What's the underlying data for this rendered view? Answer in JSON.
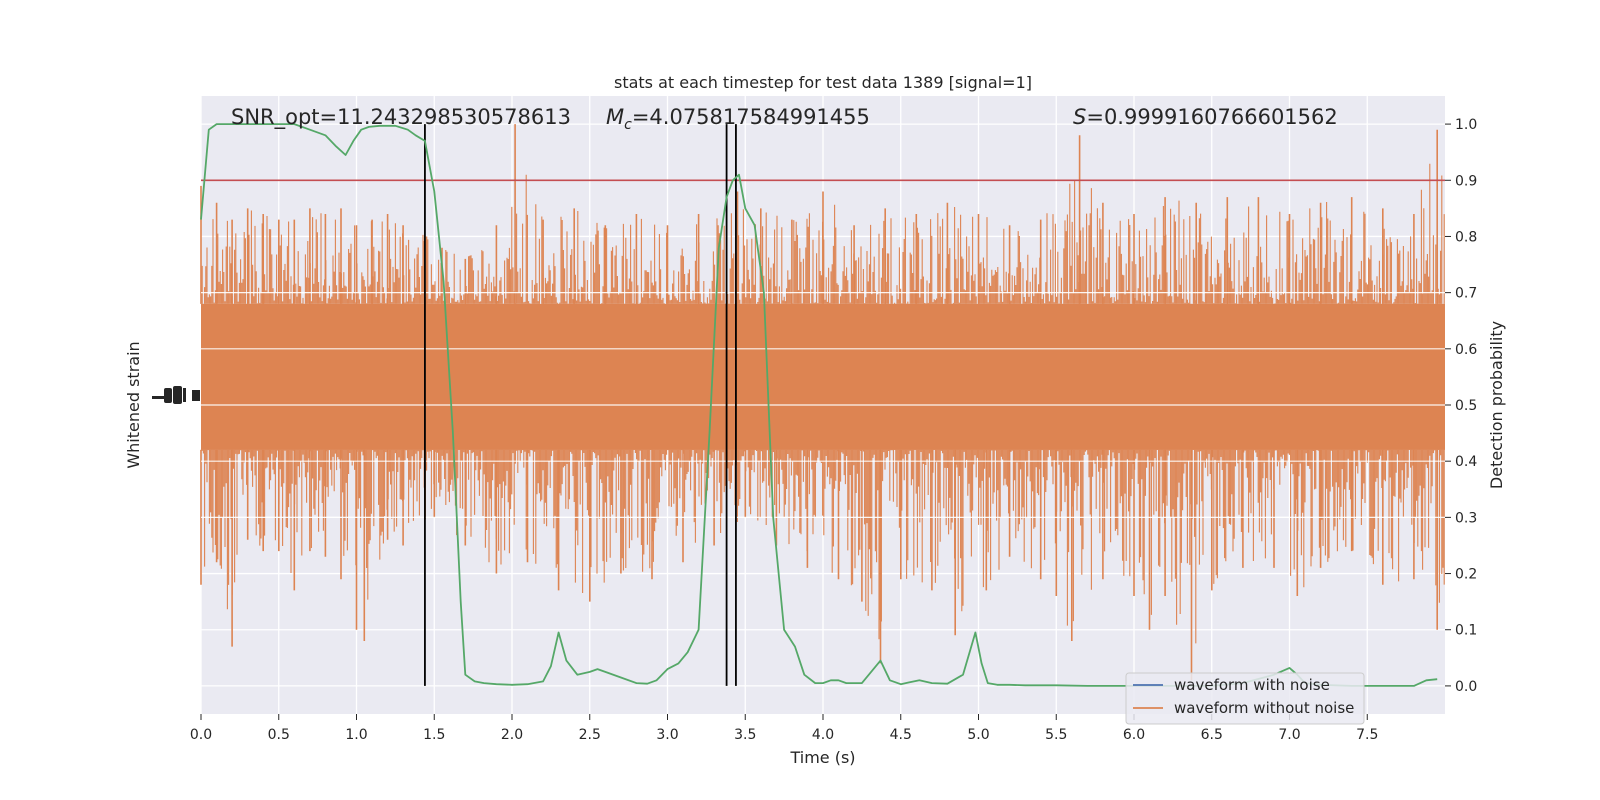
{
  "chart_data": {
    "type": "line",
    "title": "stats at each timestep for test data 1389 [signal=1]",
    "xlabel": "Time (s)",
    "ylabel_left": "Whitened strain",
    "ylabel_right": "Detection probability",
    "xlim": [
      0,
      8
    ],
    "ylim_right": [
      -0.05,
      1.05
    ],
    "x_ticks": [
      "0.0",
      "0.5",
      "1.0",
      "1.5",
      "2.0",
      "2.5",
      "3.0",
      "3.5",
      "4.0",
      "4.5",
      "5.0",
      "5.5",
      "6.0",
      "6.5",
      "7.0",
      "7.5"
    ],
    "y_ticks_right": [
      "0.0",
      "0.1",
      "0.2",
      "0.3",
      "0.4",
      "0.5",
      "0.6",
      "0.7",
      "0.8",
      "0.9",
      "1.0"
    ],
    "grid": true,
    "legend_placement": "lower-right",
    "annotations": {
      "snr": "SNR_opt=11.243298530578613",
      "mc_prefix": "M",
      "mc_sub": "c",
      "mc_value": "=4.075817584991455",
      "s_prefix": "S",
      "s_value": "=0.9999160766601562"
    },
    "threshold": {
      "y": 0.9,
      "color": "#c44e52"
    },
    "vertical_lines": [
      1.44,
      3.38,
      3.44
    ],
    "series": [
      {
        "name": "waveform with noise",
        "color": "#4c72b0",
        "values": []
      },
      {
        "name": "waveform without noise",
        "color": "#dd8452",
        "band": {
          "x_range": [
            0,
            8
          ],
          "core_low": 0.42,
          "core_high": 0.68
        },
        "peaks_upper": [
          [
            0.0,
            0.89
          ],
          [
            0.1,
            0.86
          ],
          [
            0.2,
            0.83
          ],
          [
            0.3,
            0.85
          ],
          [
            0.4,
            0.84
          ],
          [
            0.5,
            0.83
          ],
          [
            0.6,
            0.83
          ],
          [
            0.7,
            0.85
          ],
          [
            0.8,
            0.84
          ],
          [
            0.9,
            0.85
          ],
          [
            1.0,
            0.82
          ],
          [
            1.1,
            0.83
          ],
          [
            1.2,
            0.84
          ],
          [
            1.3,
            0.82
          ],
          [
            1.45,
            0.8
          ],
          [
            1.55,
            0.78
          ],
          [
            1.7,
            0.76
          ],
          [
            1.9,
            0.82
          ],
          [
            2.02,
            1.0
          ],
          [
            2.2,
            0.83
          ],
          [
            2.4,
            0.85
          ],
          [
            2.6,
            0.82
          ],
          [
            2.8,
            0.84
          ],
          [
            3.0,
            0.82
          ],
          [
            3.2,
            0.84
          ],
          [
            3.45,
            0.88
          ],
          [
            3.6,
            0.85
          ],
          [
            3.8,
            0.83
          ],
          [
            4.0,
            0.88
          ],
          [
            4.2,
            0.82
          ],
          [
            4.4,
            0.85
          ],
          [
            4.6,
            0.84
          ],
          [
            4.8,
            0.86
          ],
          [
            5.0,
            0.84
          ],
          [
            5.2,
            0.82
          ],
          [
            5.4,
            0.83
          ],
          [
            5.65,
            0.98
          ],
          [
            5.8,
            0.86
          ],
          [
            6.0,
            0.84
          ],
          [
            6.2,
            0.87
          ],
          [
            6.4,
            0.86
          ],
          [
            6.6,
            0.87
          ],
          [
            6.8,
            0.87
          ],
          [
            7.0,
            0.84
          ],
          [
            7.2,
            0.86
          ],
          [
            7.4,
            0.87
          ],
          [
            7.6,
            0.85
          ],
          [
            7.8,
            0.84
          ],
          [
            7.95,
            0.99
          ]
        ],
        "peaks_lower": [
          [
            0.0,
            0.18
          ],
          [
            0.1,
            0.22
          ],
          [
            0.2,
            0.07
          ],
          [
            0.3,
            0.26
          ],
          [
            0.4,
            0.24
          ],
          [
            0.5,
            0.24
          ],
          [
            0.6,
            0.17
          ],
          [
            0.7,
            0.24
          ],
          [
            0.8,
            0.23
          ],
          [
            0.9,
            0.19
          ],
          [
            1.0,
            0.1
          ],
          [
            1.05,
            0.08
          ],
          [
            1.2,
            0.26
          ],
          [
            1.3,
            0.25
          ],
          [
            1.5,
            0.3
          ],
          [
            1.7,
            0.25
          ],
          [
            1.9,
            0.2
          ],
          [
            2.1,
            0.22
          ],
          [
            2.3,
            0.17
          ],
          [
            2.5,
            0.15
          ],
          [
            2.7,
            0.2
          ],
          [
            2.9,
            0.19
          ],
          [
            3.1,
            0.22
          ],
          [
            3.3,
            0.25
          ],
          [
            3.5,
            0.3
          ],
          [
            3.7,
            0.25
          ],
          [
            3.9,
            0.21
          ],
          [
            4.1,
            0.19
          ],
          [
            4.25,
            0.15
          ],
          [
            4.37,
            0.04
          ],
          [
            4.5,
            0.19
          ],
          [
            4.7,
            0.17
          ],
          [
            4.85,
            0.09
          ],
          [
            5.05,
            0.17
          ],
          [
            5.2,
            0.23
          ],
          [
            5.4,
            0.19
          ],
          [
            5.5,
            0.16
          ],
          [
            5.6,
            0.08
          ],
          [
            5.8,
            0.19
          ],
          [
            6.0,
            0.16
          ],
          [
            6.1,
            0.1
          ],
          [
            6.2,
            0.16
          ],
          [
            6.37,
            0.01
          ],
          [
            6.5,
            0.17
          ],
          [
            6.7,
            0.21
          ],
          [
            6.9,
            0.21
          ],
          [
            7.05,
            0.16
          ],
          [
            7.2,
            0.21
          ],
          [
            7.4,
            0.24
          ],
          [
            7.6,
            0.18
          ],
          [
            7.8,
            0.19
          ],
          [
            7.95,
            0.1
          ]
        ]
      },
      {
        "name": "",
        "color": "#55a868",
        "x": [
          0.0,
          0.05,
          0.1,
          0.2,
          0.3,
          0.4,
          0.5,
          0.6,
          0.7,
          0.8,
          0.87,
          0.93,
          0.98,
          1.03,
          1.08,
          1.15,
          1.25,
          1.33,
          1.38,
          1.44,
          1.5,
          1.56,
          1.62,
          1.67,
          1.7,
          1.76,
          1.82,
          1.9,
          2.0,
          2.1,
          2.2,
          2.25,
          2.3,
          2.35,
          2.42,
          2.5,
          2.55,
          2.6,
          2.7,
          2.8,
          2.87,
          2.93,
          3.0,
          3.07,
          3.13,
          3.2,
          3.27,
          3.33,
          3.38,
          3.42,
          3.46,
          3.5,
          3.56,
          3.62,
          3.68,
          3.75,
          3.82,
          3.88,
          3.95,
          4.0,
          4.05,
          4.1,
          4.15,
          4.25,
          4.37,
          4.43,
          4.5,
          4.55,
          4.62,
          4.7,
          4.8,
          4.9,
          4.98,
          5.02,
          5.06,
          5.12,
          5.2,
          5.3,
          5.5,
          5.7,
          5.9,
          6.1,
          6.3,
          6.5,
          6.7,
          6.9,
          7.0,
          7.05,
          7.1,
          7.2,
          7.4,
          7.6,
          7.8,
          7.88,
          7.95
        ],
        "values": [
          0.83,
          0.99,
          1.0,
          1.0,
          1.0,
          1.0,
          1.0,
          1.0,
          0.99,
          0.98,
          0.96,
          0.945,
          0.97,
          0.99,
          0.995,
          0.997,
          0.997,
          0.99,
          0.98,
          0.97,
          0.88,
          0.72,
          0.45,
          0.15,
          0.02,
          0.008,
          0.005,
          0.003,
          0.002,
          0.003,
          0.008,
          0.035,
          0.095,
          0.045,
          0.02,
          0.025,
          0.03,
          0.025,
          0.015,
          0.005,
          0.004,
          0.01,
          0.03,
          0.04,
          0.06,
          0.1,
          0.45,
          0.78,
          0.87,
          0.9,
          0.91,
          0.85,
          0.82,
          0.7,
          0.3,
          0.1,
          0.07,
          0.02,
          0.005,
          0.005,
          0.01,
          0.01,
          0.005,
          0.005,
          0.045,
          0.01,
          0.003,
          0.006,
          0.01,
          0.005,
          0.004,
          0.02,
          0.095,
          0.04,
          0.005,
          0.002,
          0.002,
          0.001,
          0.001,
          0.0,
          0.0,
          0.0,
          0.0,
          0.0,
          0.005,
          0.02,
          0.032,
          0.02,
          0.005,
          0.002,
          0.0,
          0.0,
          0.0,
          0.01,
          0.012
        ]
      }
    ]
  }
}
